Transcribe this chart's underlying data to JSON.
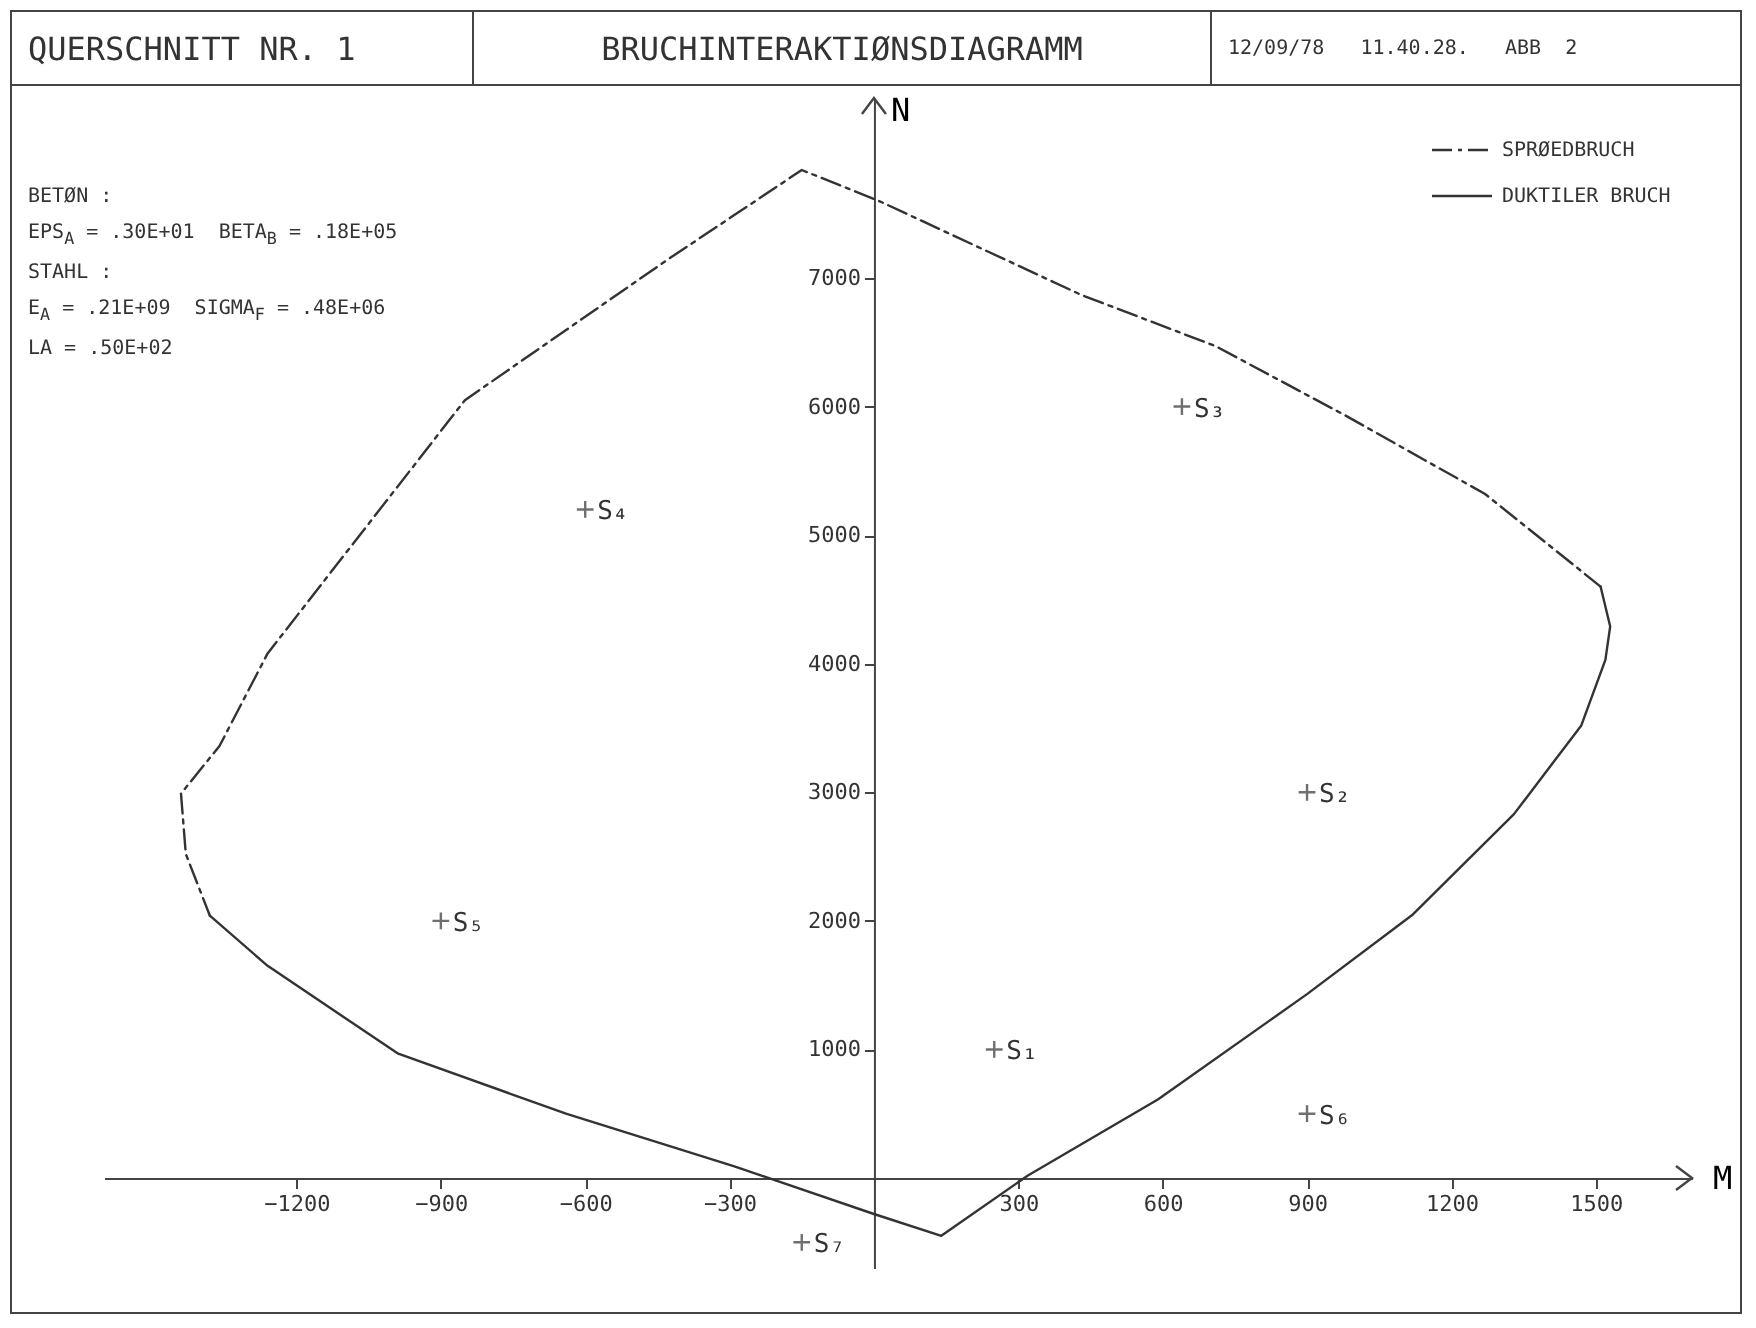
{
  "chart_data": {
    "type": "line",
    "title": "BRUCHINTERAKTIØNSDIAGRAMM",
    "xlabel": "M",
    "ylabel": "N",
    "xlim": [
      -1600,
      1700
    ],
    "ylim": [
      -700,
      8400
    ],
    "xticks": [
      -1200,
      -900,
      -600,
      -300,
      300,
      600,
      900,
      1200,
      1500
    ],
    "yticks": [
      1000,
      2000,
      3000,
      4000,
      5000,
      6000,
      7000
    ],
    "grid": false,
    "legend": "top right",
    "series": [
      {
        "name": "SPRØEDBRUCH",
        "color": "#333333",
        "line_style": "dashed",
        "x": [
          1510,
          1270,
          980,
          710,
          430,
          10,
          -150,
          -430,
          -850,
          -1260,
          -1360,
          -1440,
          -1430,
          -1380
        ],
        "values": [
          4600,
          5320,
          5930,
          6470,
          6870,
          7600,
          7840,
          7140,
          6050,
          4080,
          3360,
          2990,
          2520,
          2040
        ]
      },
      {
        "name": "DUKTILER BRUCH",
        "color": "#333333",
        "line_style": "solid",
        "x": [
          -1380,
          -1260,
          -990,
          -640,
          -290,
          0,
          140,
          320,
          590,
          900,
          1120,
          1330,
          1470,
          1520,
          1530,
          1510
        ],
        "values": [
          2040,
          1650,
          970,
          500,
          90,
          -280,
          -450,
          20,
          610,
          1430,
          2050,
          2830,
          3520,
          4030,
          4290,
          4600
        ]
      },
      {
        "type": "scatter",
        "marker": "cross",
        "color": "#333333",
        "x": [
          250,
          900,
          640,
          -600,
          -900,
          900,
          -150
        ],
        "values": [
          1000,
          3000,
          6000,
          5200,
          2000,
          500,
          -500
        ]
      }
    ],
    "annotations": [
      "QUERSCHNITT NR. 1",
      "12/09/78   11.40.28.   ABB  2",
      "BETØN :",
      "EPS$_{A}$ = .30E+01  BETA$_{B}$ = .18E+05",
      "STAHL :",
      "E$_{A}$ = .21E+09  SIGMA$_{F}$ = .48E+06",
      "LA = .50E+02",
      {
        "text": "S₁",
        "x": 250,
        "y": 1000
      },
      {
        "text": "S₂",
        "x": 900,
        "y": 3000
      },
      {
        "text": "S₃",
        "x": 640,
        "y": 6000
      },
      {
        "text": "S₄",
        "x": -600,
        "y": 5200
      },
      {
        "text": "S₅",
        "x": -900,
        "y": 2000
      },
      {
        "text": "S₆",
        "x": 900,
        "y": 500
      },
      {
        "text": "S₇",
        "x": -150,
        "y": -500
      }
    ]
  }
}
